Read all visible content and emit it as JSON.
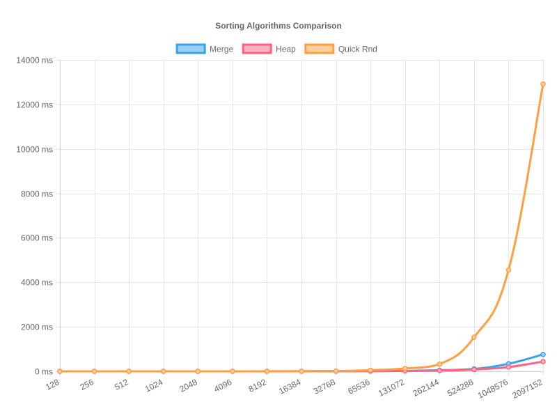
{
  "chart_data": {
    "type": "line",
    "title": "Sorting Algorithms Comparison",
    "xlabel": "",
    "ylabel": "",
    "y_unit_suffix": " ms",
    "categories": [
      "128",
      "256",
      "512",
      "1024",
      "2048",
      "4096",
      "8192",
      "16384",
      "32768",
      "65536",
      "131072",
      "262144",
      "524288",
      "1048576",
      "2097152"
    ],
    "ylim": [
      0,
      14000
    ],
    "y_ticks": [
      0,
      2000,
      4000,
      6000,
      8000,
      10000,
      12000,
      14000
    ],
    "grid": true,
    "legend_position": "top",
    "series": [
      {
        "name": "Merge",
        "color": "#36a2eb",
        "fill": "#9ad0f5",
        "values": [
          0,
          0,
          0,
          0,
          0,
          0,
          1,
          2,
          4,
          9,
          20,
          50,
          110,
          340,
          760
        ]
      },
      {
        "name": "Heap",
        "color": "#ff6384",
        "fill": "#ffb1c1",
        "values": [
          0,
          0,
          0,
          0,
          0,
          0,
          1,
          2,
          4,
          8,
          15,
          35,
          80,
          190,
          440
        ]
      },
      {
        "name": "Quick Rnd",
        "color": "#ff9f40",
        "fill": "#ffcf9f",
        "values": [
          0,
          0,
          0,
          0,
          0,
          1,
          2,
          5,
          15,
          50,
          130,
          320,
          1530,
          4560,
          12920
        ]
      }
    ]
  }
}
